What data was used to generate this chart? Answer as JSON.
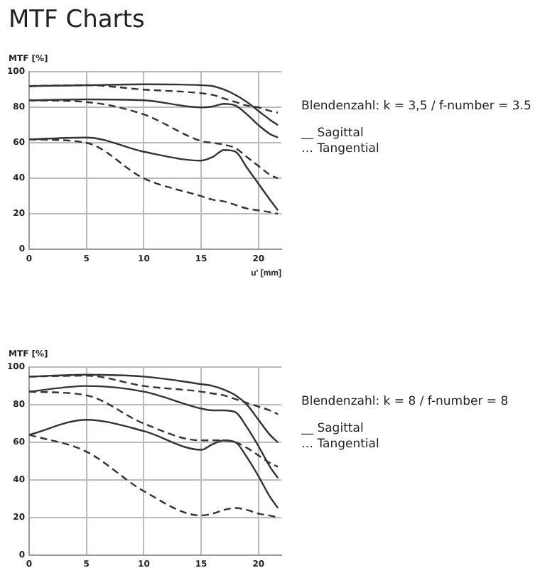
{
  "chart_data": [
    {
      "type": "line",
      "title": "MTF Charts",
      "ylabel": "MTF [%]",
      "xlabel": "u' [mm]",
      "xlim": [
        0,
        22
      ],
      "xticks": [
        0,
        5,
        10,
        15,
        20
      ],
      "ylim": [
        0,
        100
      ],
      "yticks": [
        0,
        20,
        40,
        60,
        80,
        100
      ],
      "grid": true,
      "legend": false,
      "marker": "none",
      "annotations": [
        "Blendenzahl: k = 3,5 / f-number = 3.5",
        "__ Sagittal",
        "… Tangential"
      ],
      "x": [
        0,
        5,
        10,
        15,
        16,
        17,
        18,
        19,
        20,
        21,
        21.7
      ],
      "series": [
        {
          "color": "#333333",
          "line_style": "solid",
          "values": [
            92,
            92.5,
            93,
            92.5,
            92,
            90,
            87,
            83,
            78,
            73,
            70
          ]
        },
        {
          "color": "#333333",
          "line_style": "solid",
          "values": [
            84,
            84.5,
            84,
            80,
            80.5,
            82,
            81,
            76,
            70,
            65,
            63
          ]
        },
        {
          "color": "#333333",
          "line_style": "solid",
          "values": [
            62,
            63,
            55,
            50,
            52,
            56,
            55,
            46,
            37,
            28,
            22
          ]
        },
        {
          "color": "#333333",
          "line_style": "dashed",
          "values": [
            92,
            92.5,
            90,
            88,
            87,
            85,
            83,
            81,
            80,
            78,
            77
          ]
        },
        {
          "color": "#333333",
          "line_style": "dashed",
          "values": [
            84,
            83,
            76,
            61,
            60,
            59,
            57,
            52,
            47,
            42,
            40
          ]
        },
        {
          "color": "#333333",
          "line_style": "dashed",
          "values": [
            62,
            60,
            40,
            30,
            28,
            27,
            25,
            23,
            22,
            21,
            20
          ]
        }
      ]
    },
    {
      "type": "line",
      "ylabel": "MTF [%]",
      "xlim": [
        0,
        22
      ],
      "xticks": [
        0,
        5,
        10,
        15,
        20
      ],
      "ylim": [
        0,
        100
      ],
      "yticks": [
        0,
        20,
        40,
        60,
        80,
        100
      ],
      "grid": true,
      "legend": false,
      "marker": "none",
      "annotations": [
        "Blendenzahl: k = 8 / f-number = 8",
        "__ Sagittal",
        "… Tangential"
      ],
      "x": [
        0,
        5,
        10,
        15,
        16,
        17,
        18,
        19,
        20,
        21,
        21.7
      ],
      "series": [
        {
          "color": "#333333",
          "line_style": "solid",
          "values": [
            95,
            96,
            95,
            91,
            90,
            88,
            85,
            80,
            72,
            64,
            60
          ]
        },
        {
          "color": "#333333",
          "line_style": "solid",
          "values": [
            87,
            90,
            87,
            78,
            77,
            77,
            76,
            68,
            58,
            47,
            41
          ]
        },
        {
          "color": "#333333",
          "line_style": "solid",
          "values": [
            64,
            72,
            66,
            56,
            59,
            61,
            60,
            52,
            42,
            31,
            25
          ]
        },
        {
          "color": "#333333",
          "line_style": "dashed",
          "values": [
            95,
            95.5,
            90,
            87,
            86,
            85,
            83,
            81,
            79,
            77,
            75
          ]
        },
        {
          "color": "#333333",
          "line_style": "dashed",
          "values": [
            87,
            85,
            70,
            61,
            61,
            61,
            60,
            57,
            53,
            49,
            47
          ]
        },
        {
          "color": "#333333",
          "line_style": "dashed",
          "values": [
            64,
            55,
            34,
            21,
            22,
            24,
            25,
            24,
            22,
            21,
            20
          ]
        }
      ]
    }
  ]
}
